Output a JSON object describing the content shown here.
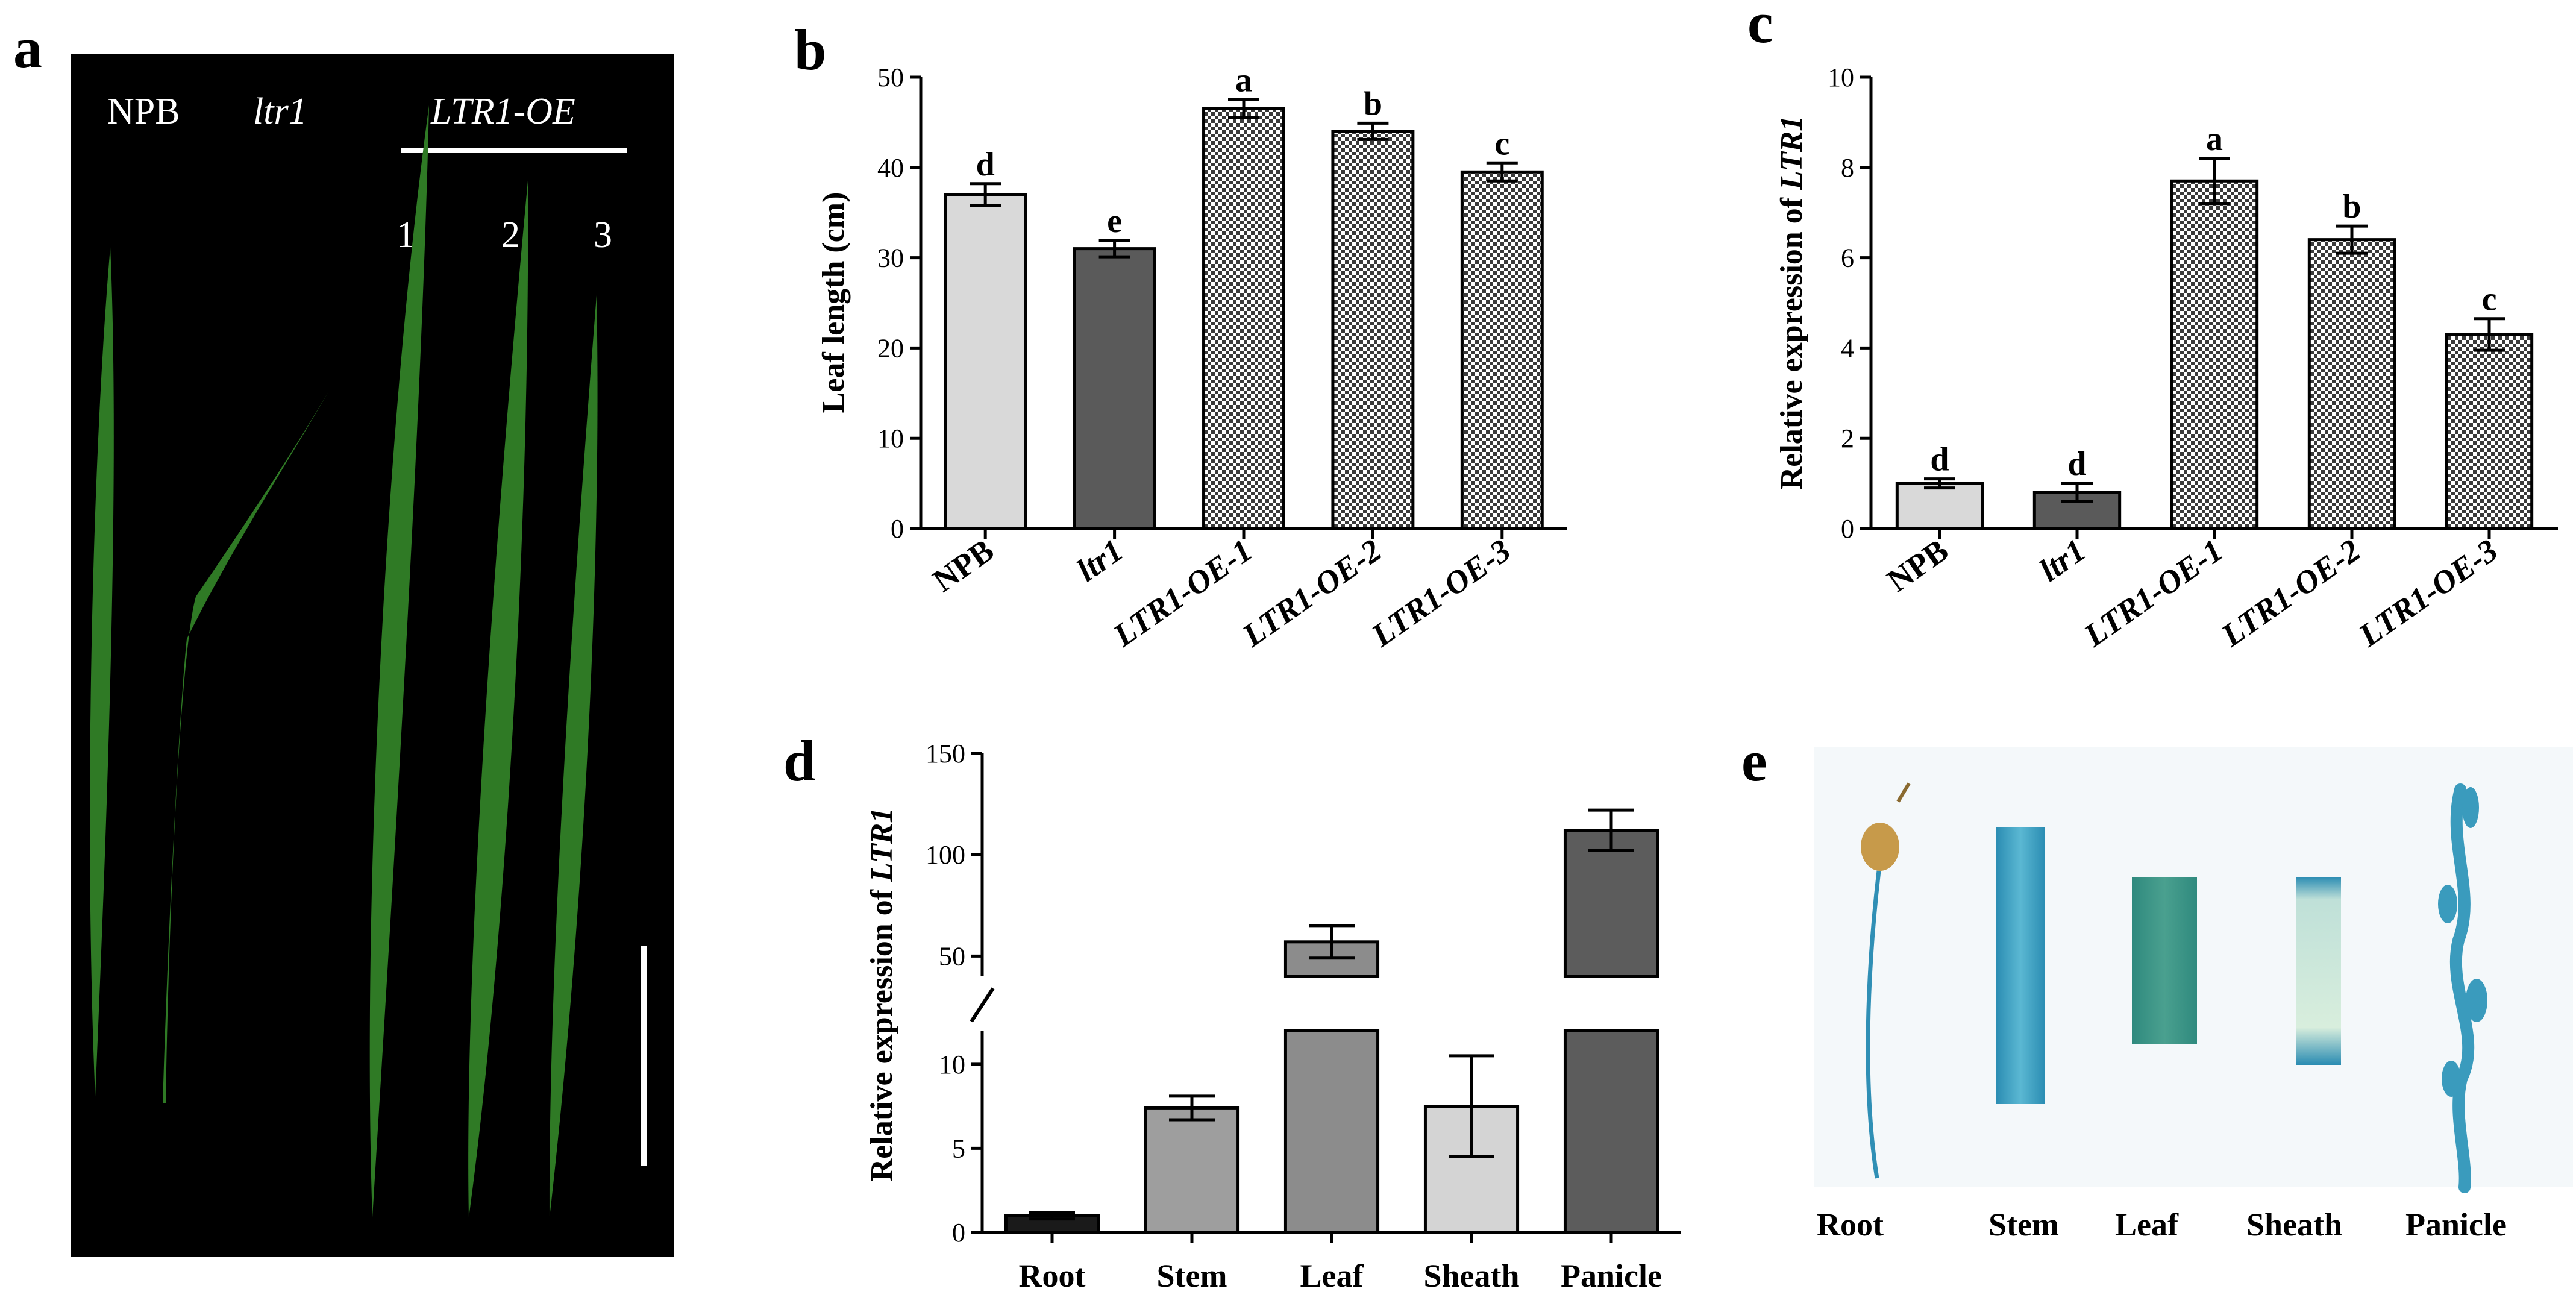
{
  "panels": {
    "a": {
      "label": "a",
      "npb": "NPB",
      "ltr1": "ltr1",
      "oe": "LTR1-OE",
      "lines": [
        "1",
        "2",
        "3"
      ],
      "colors": {
        "background": "#000000",
        "leaf": "#2f7a25",
        "leaf_dark": "#1c5217"
      }
    },
    "b": {
      "label": "b"
    },
    "c": {
      "label": "c"
    },
    "d": {
      "label": "d"
    },
    "e": {
      "label": "e",
      "tissues": [
        "Root",
        "Stem",
        "Leaf",
        "Sheath",
        "Panicle"
      ],
      "colors": {
        "stain": "#2f8fb5",
        "stain_light": "#9fd0dc",
        "seed": "#c79a4a"
      }
    }
  },
  "chart_data": [
    {
      "panel": "b",
      "type": "bar",
      "categories": [
        "NPB",
        "ltr1",
        "LTR1-OE-1",
        "LTR1-OE-2",
        "LTR1-OE-3"
      ],
      "values": [
        37,
        31,
        46.5,
        44,
        39.5
      ],
      "errors": [
        1.2,
        0.9,
        1.0,
        0.9,
        1.0
      ],
      "significance": [
        "d",
        "e",
        "a",
        "b",
        "c"
      ],
      "ylabel": "Leaf length (cm)",
      "ylim": [
        0,
        50
      ],
      "yticks": [
        "0",
        "10",
        "20",
        "30",
        "40",
        "50"
      ],
      "colors": {
        "NPB": "#d9d9d9",
        "ltr1": "#5a5a5a",
        "OE": "hatch"
      }
    },
    {
      "panel": "c",
      "type": "bar",
      "categories": [
        "NPB",
        "ltr1",
        "LTR1-OE-1",
        "LTR1-OE-2",
        "LTR1-OE-3"
      ],
      "values": [
        1.0,
        0.8,
        7.7,
        6.4,
        4.3
      ],
      "errors": [
        0.1,
        0.2,
        0.5,
        0.3,
        0.35
      ],
      "significance": [
        "d",
        "d",
        "a",
        "b",
        "c"
      ],
      "ylabel_prefix": "Relative expression of",
      "ylabel_gene": "LTR1",
      "ylim": [
        0,
        10
      ],
      "yticks": [
        "0",
        "2",
        "4",
        "6",
        "8",
        "10"
      ],
      "colors": {
        "NPB": "#d9d9d9",
        "ltr1": "#5a5a5a",
        "OE": "hatch"
      }
    },
    {
      "panel": "d",
      "type": "bar",
      "axis_break": [
        12,
        40
      ],
      "categories": [
        "Root",
        "Stem",
        "Leaf",
        "Sheath",
        "Panicle"
      ],
      "values": [
        1.0,
        7.4,
        57,
        7.5,
        112
      ],
      "errors": [
        0.2,
        0.7,
        8,
        3.0,
        10
      ],
      "ylabel_prefix": "Relative expression of",
      "ylabel_gene": "LTR1",
      "lower_ylim": [
        0,
        12
      ],
      "lower_yticks": [
        "0",
        "5",
        "10"
      ],
      "upper_ylim": [
        40,
        150
      ],
      "upper_yticks": [
        "50",
        "100",
        "150"
      ],
      "colors": [
        "#1a1a1a",
        "#9e9e9e",
        "#8c8c8c",
        "#d4d4d4",
        "#5c5c5c"
      ]
    }
  ]
}
